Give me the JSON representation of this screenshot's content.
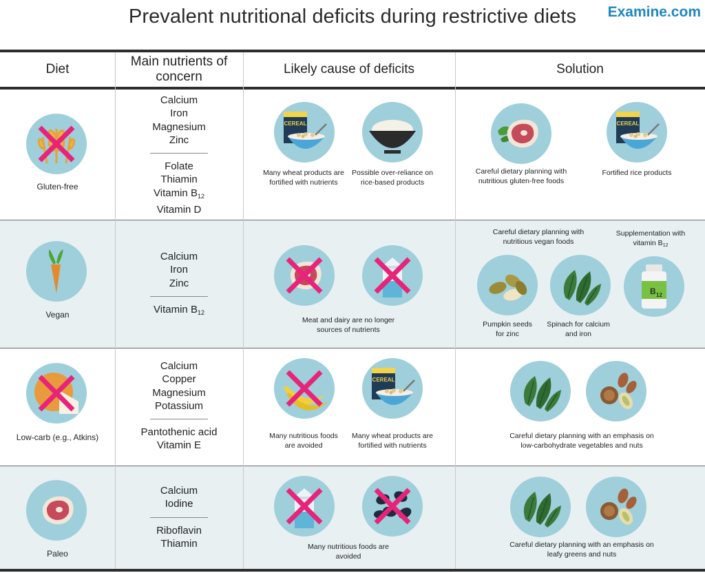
{
  "title": "Prevalent nutritional deficits during restrictive diets",
  "brand": "Examine.com",
  "headers": {
    "diet": "Diet",
    "nutrients_line1": "Main nutrients of",
    "nutrients_line2": "concern",
    "cause": "Likely cause of deficits",
    "solution": "Solution"
  },
  "rows": [
    {
      "diet": "Gluten-free",
      "nutrients_primary": [
        "Calcium",
        "Iron",
        "Magnesium",
        "Zinc"
      ],
      "nutrients_secondary": [
        "Folate",
        "Thiamin",
        "Vitamin B12",
        "Vitamin D"
      ],
      "causes": [
        {
          "icon": "cereal-bowl-icon",
          "text_line1": "Many wheat products are",
          "text_line2": "fortified with nutrients"
        },
        {
          "icon": "rice-bowl-icon",
          "text_line1": "Possible over-reliance on",
          "text_line2": "rice-based products"
        }
      ],
      "solutions": [
        {
          "icon": "steak-greens-icon",
          "text_line1": "Careful dietary planning with",
          "text_line2": "nutritious gluten-free foods"
        },
        {
          "icon": "cereal-bowl-icon",
          "text_line1": "Fortified rice products",
          "text_line2": ""
        }
      ]
    },
    {
      "diet": "Vegan",
      "nutrients_primary": [
        "Calcium",
        "Iron",
        "Zinc"
      ],
      "nutrients_secondary": [
        "Vitamin B12"
      ],
      "cause_text_line1": "Meat and dairy are no longer",
      "cause_text_line2": "sources of nutrients",
      "solution_top_left_line1": "Careful dietary planning with",
      "solution_top_left_line2": "nutritious vegan foods",
      "solution_top_right_line1": "Supplementation with",
      "solution_top_right_line2": "vitamin B12",
      "solution_pumpkin_line1": "Pumpkin seeds",
      "solution_pumpkin_line2": "for zinc",
      "solution_spinach_line1": "Spinach for calcium",
      "solution_spinach_line2": "and iron",
      "b12_label": "B12"
    },
    {
      "diet": "Low-carb (e.g., Atkins)",
      "nutrients_primary": [
        "Calcium",
        "Copper",
        "Magnesium",
        "Potassium"
      ],
      "nutrients_secondary": [
        "Pantothenic acid",
        "Vitamin E"
      ],
      "causes": [
        {
          "icon": "banana-icon",
          "text_line1": "Many nutritious foods",
          "text_line2": "are avoided"
        },
        {
          "icon": "cereal-bowl-icon",
          "text_line1": "Many wheat products are",
          "text_line2": "fortified with nutrients"
        }
      ],
      "solution_line1": "Careful dietary planning with an emphasis on",
      "solution_line2": "low-carbohydrate vegetables and nuts"
    },
    {
      "diet": "Paleo",
      "nutrients_primary": [
        "Calcium",
        "Iodine"
      ],
      "nutrients_secondary": [
        "Riboflavin",
        "Thiamin"
      ],
      "cause_text_line1": "Many nutritious foods are",
      "cause_text_line2": "avoided",
      "solution_line1": "Careful dietary planning with an emphasis on",
      "solution_line2": "leafy greens and nuts"
    }
  ],
  "cereal_box_label": "CEREAL",
  "colors": {
    "circle": "#9ecfdb",
    "cross": "#e8237a",
    "brand": "#1e86c1",
    "row_shade": "#e8f0f2"
  }
}
